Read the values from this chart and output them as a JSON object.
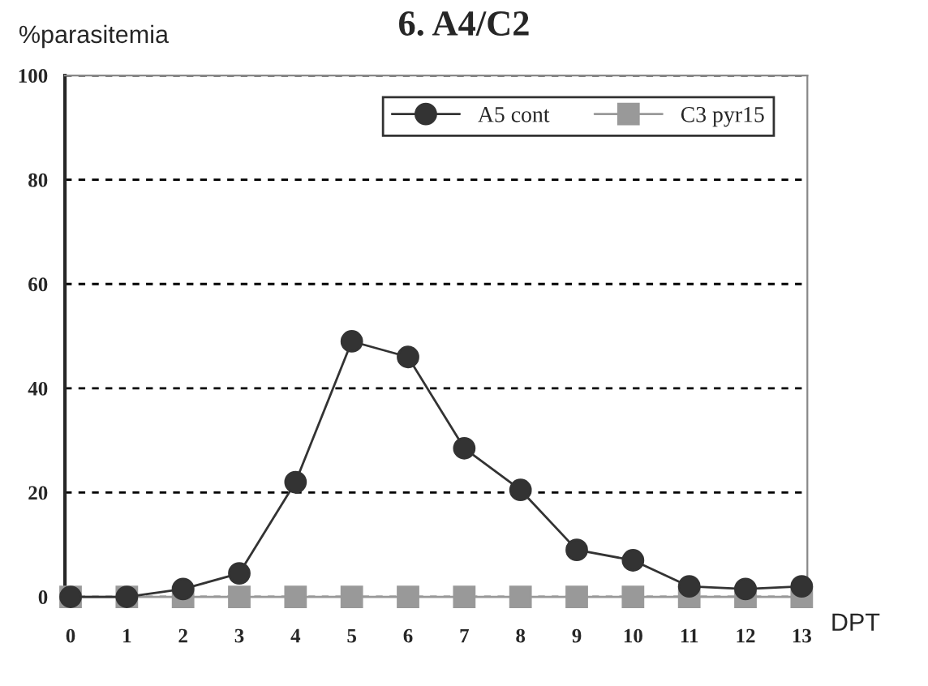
{
  "chart_data": {
    "type": "line",
    "title": "6. A4/C2",
    "xlabel": "DPT",
    "ylabel": "%parasitemia",
    "categories": [
      "0",
      "1",
      "2",
      "3",
      "4",
      "5",
      "6",
      "7",
      "8",
      "9",
      "10",
      "11",
      "12",
      "13"
    ],
    "series": [
      {
        "name": "A5 cont",
        "color": "#333333",
        "marker": "circle",
        "values": [
          0,
          0,
          1.5,
          4.5,
          22,
          49,
          46,
          28.5,
          20.5,
          9,
          7,
          2,
          1.5,
          2
        ]
      },
      {
        "name": "C3 pyr15",
        "color": "#999999",
        "marker": "square",
        "values": [
          0,
          0,
          0,
          0,
          0,
          0,
          0,
          0,
          0,
          0,
          0,
          0,
          0,
          0
        ]
      }
    ],
    "ylim": [
      0,
      100
    ],
    "yticks": [
      0,
      20,
      40,
      60,
      80,
      100
    ],
    "grid": "y",
    "legend": "top right"
  }
}
